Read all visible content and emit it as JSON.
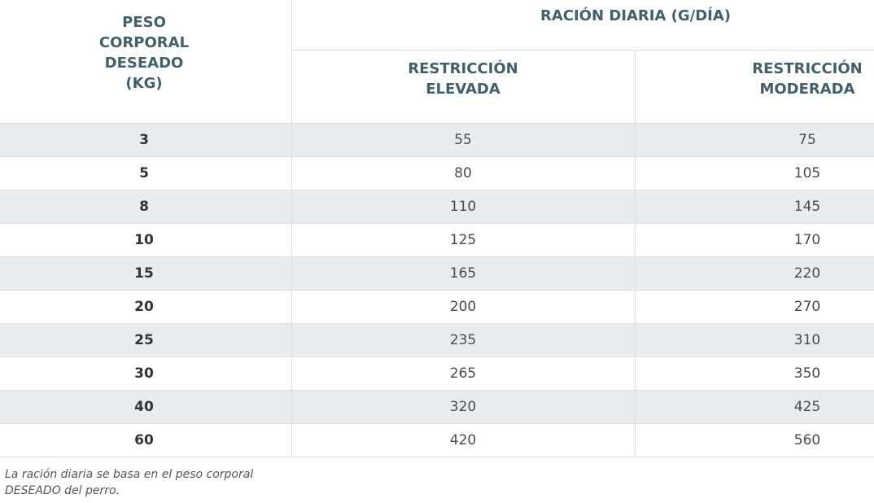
{
  "header": {
    "weight_column": [
      "PESO",
      "CORPORAL",
      "DESEADO",
      "(KG)"
    ],
    "ration_group": "RACIÓN DIARIA (G/DÍA)",
    "subcolumns": [
      [
        "RESTRICCIÓN",
        "ELEVADA"
      ],
      [
        "RESTRICCIÓN",
        "MODERADA"
      ]
    ]
  },
  "table": {
    "rows": [
      [
        3,
        55,
        75
      ],
      [
        5,
        80,
        105
      ],
      [
        8,
        110,
        145
      ],
      [
        10,
        125,
        170
      ],
      [
        15,
        165,
        220
      ],
      [
        20,
        200,
        270
      ],
      [
        25,
        235,
        310
      ],
      [
        30,
        265,
        350
      ],
      [
        40,
        320,
        425
      ],
      [
        60,
        420,
        560
      ]
    ]
  },
  "footnote": [
    "La ración diaria se basa en el peso corporal",
    "DESEADO del perro."
  ]
}
